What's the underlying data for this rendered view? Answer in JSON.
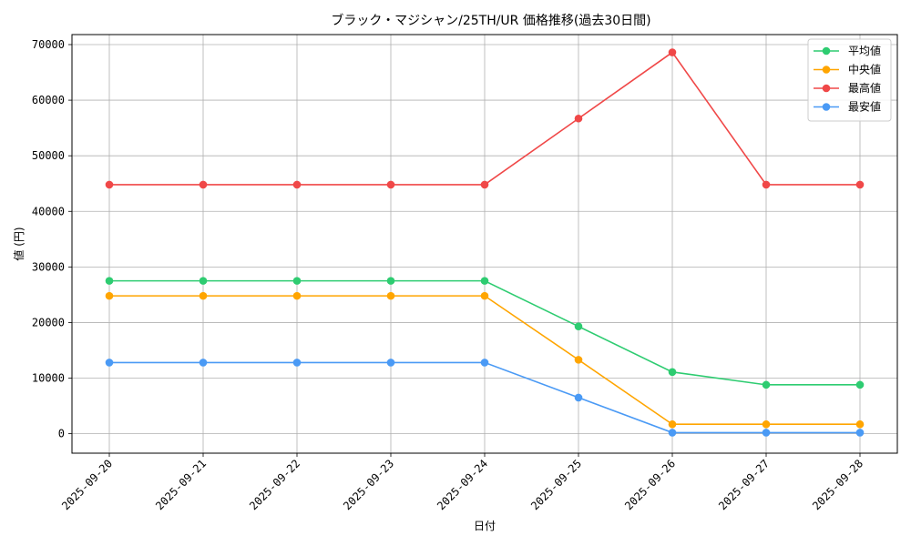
{
  "chart_data": {
    "type": "line",
    "title": "ブラック・マジシャン/25TH/UR 価格推移(過去30日間)",
    "xlabel": "日付",
    "ylabel": "値 (円)",
    "categories": [
      "2025-09-20",
      "2025-09-21",
      "2025-09-22",
      "2025-09-23",
      "2025-09-24",
      "2025-09-25",
      "2025-09-26",
      "2025-09-27",
      "2025-09-28"
    ],
    "ylim": [
      -3500,
      71800
    ],
    "yticks": [
      0,
      10000,
      20000,
      30000,
      40000,
      50000,
      60000,
      70000
    ],
    "grid": true,
    "legend_position": "top-right",
    "series": [
      {
        "name": "平均値",
        "color": "#2ecc71",
        "values": [
          27500,
          27500,
          27500,
          27500,
          27500,
          19300,
          11100,
          8800,
          8800
        ]
      },
      {
        "name": "中央値",
        "color": "#ffa500",
        "values": [
          24800,
          24800,
          24800,
          24800,
          24800,
          13300,
          1700,
          1700,
          1700
        ]
      },
      {
        "name": "最高値",
        "color": "#f04848",
        "values": [
          44800,
          44800,
          44800,
          44800,
          44800,
          56700,
          68600,
          44800,
          44800
        ]
      },
      {
        "name": "最安値",
        "color": "#4a9af5",
        "values": [
          12800,
          12800,
          12800,
          12800,
          12800,
          6500,
          200,
          200,
          200
        ]
      }
    ]
  }
}
